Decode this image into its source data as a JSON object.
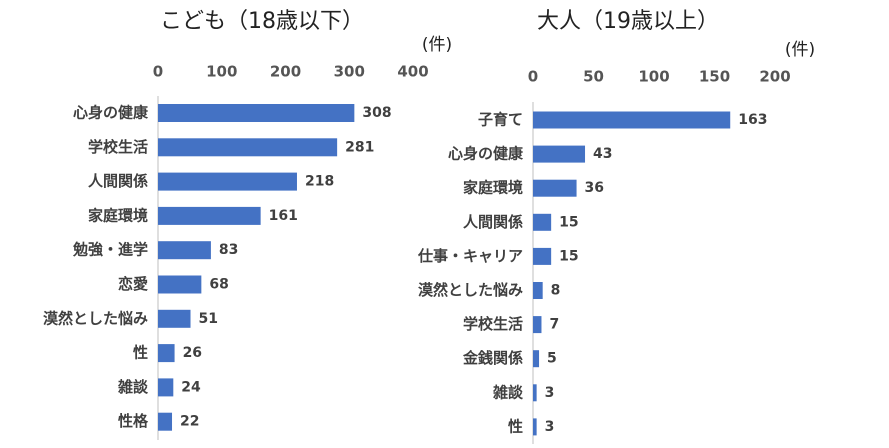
{
  "chart_data": [
    {
      "type": "bar",
      "orientation": "horizontal",
      "title": "こども（18歳以下）",
      "unit_label": "(件)",
      "categories": [
        "心身の健康",
        "学校生活",
        "人間関係",
        "家庭環境",
        "勉強・進学",
        "恋愛",
        "漠然とした悩み",
        "性",
        "雑談",
        "性格"
      ],
      "values": [
        308,
        281,
        218,
        161,
        83,
        68,
        51,
        26,
        24,
        22
      ],
      "color": "#4472c4",
      "xlim": [
        0,
        400
      ],
      "xticks": [
        0,
        100,
        200,
        300,
        400
      ],
      "grid": false
    },
    {
      "type": "bar",
      "orientation": "horizontal",
      "title": "大人（19歳以上）",
      "unit_label": "(件)",
      "categories": [
        "子育て",
        "心身の健康",
        "家庭環境",
        "人間関係",
        "仕事・キャリア",
        "漠然とした悩み",
        "学校生活",
        "金銭関係",
        "雑談",
        "性"
      ],
      "values": [
        163,
        43,
        36,
        15,
        15,
        8,
        7,
        5,
        3,
        3
      ],
      "color": "#4472c4",
      "xlim": [
        0,
        200
      ],
      "xticks": [
        0,
        50,
        100,
        150,
        200
      ],
      "grid": false
    }
  ]
}
